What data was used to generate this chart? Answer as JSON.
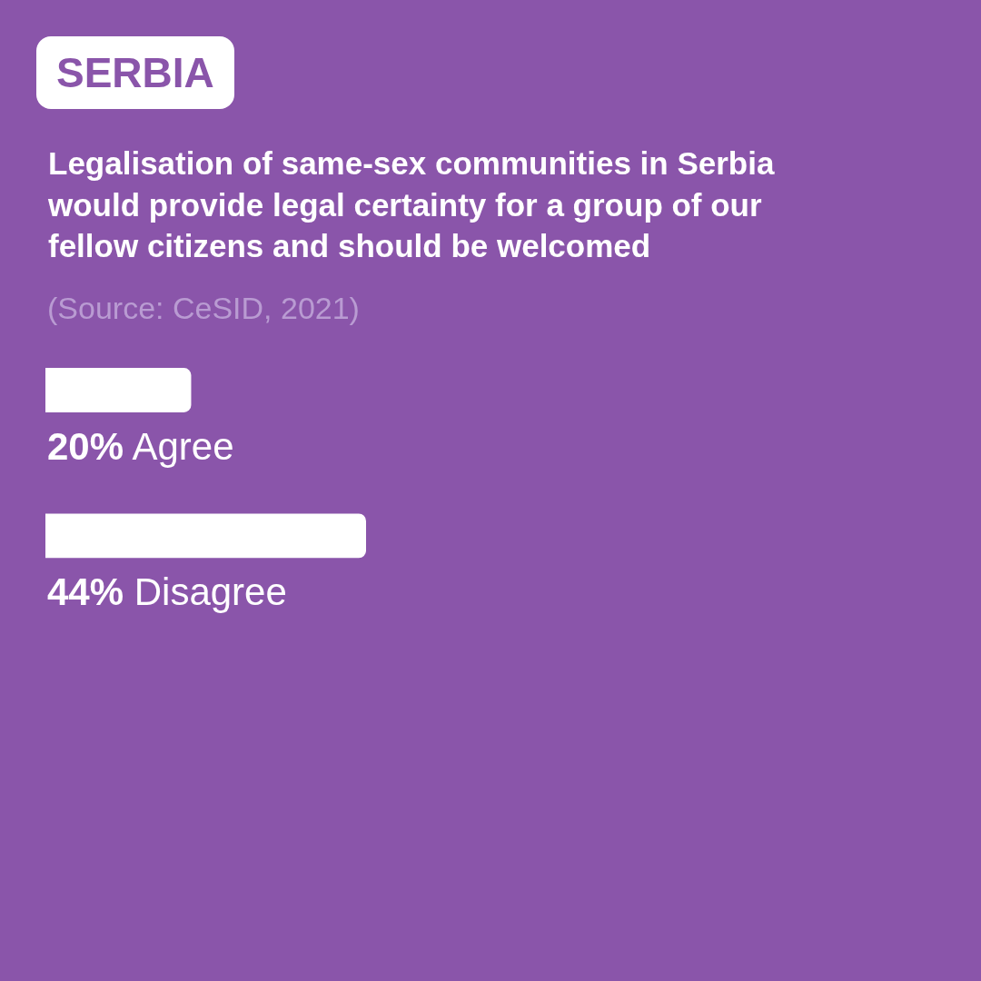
{
  "chart_data": {
    "type": "bar",
    "orientation": "horizontal",
    "title": "Legalisation of same-sex communities in Serbia would provide legal certainty for a group of our fellow citizens and should be welcomed",
    "annotations": [
      "SERBIA",
      "(Source: CeSID, 2021)"
    ],
    "categories": [
      "Agree",
      "Disagree"
    ],
    "values": [
      20,
      44
    ],
    "value_labels": [
      "20%",
      "44%"
    ],
    "color": "#ffffff",
    "legend": false
  }
}
